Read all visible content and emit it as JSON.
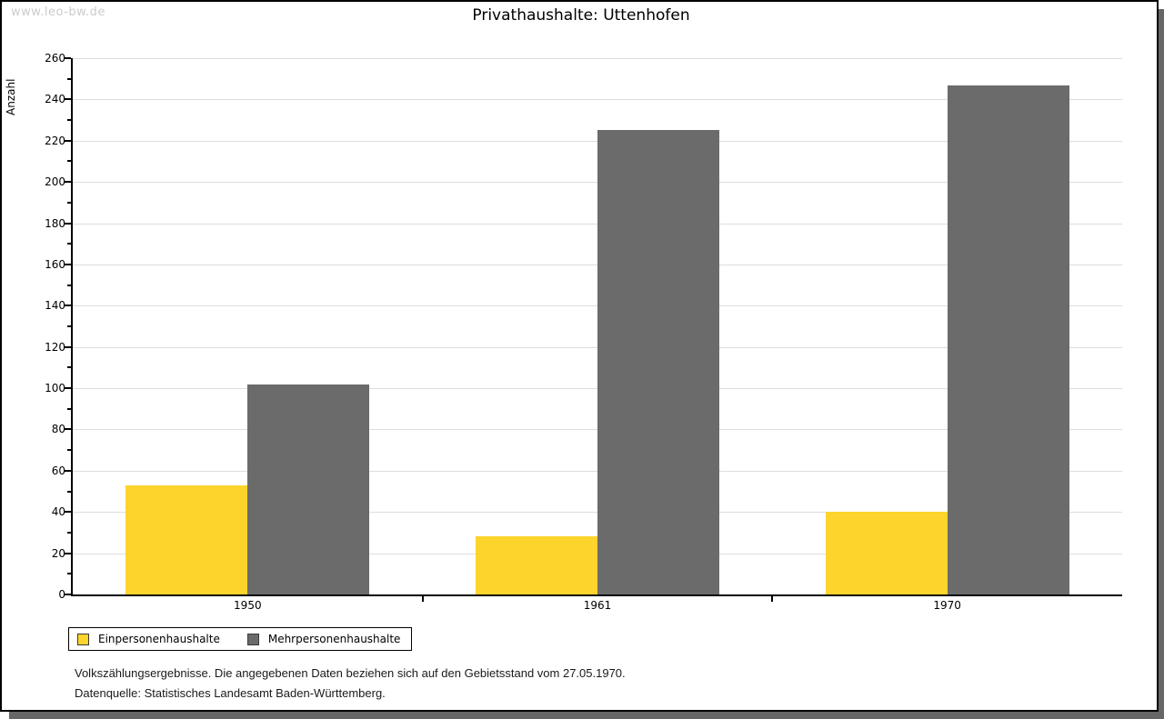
{
  "watermark": "www.leo-bw.de",
  "title": "Privathaushalte: Uttenhofen",
  "chart_data": {
    "type": "bar",
    "title": "Privathaushalte: Uttenhofen",
    "xlabel": "",
    "ylabel": "Anzahl",
    "categories": [
      "1950",
      "1961",
      "1970"
    ],
    "series": [
      {
        "name": "Einpersonenhaushalte",
        "color": "#FCD42C",
        "values": [
          53,
          28,
          40
        ]
      },
      {
        "name": "Mehrpersonenhaushalte",
        "color": "#6B6B6B",
        "values": [
          102,
          225,
          247
        ]
      }
    ],
    "ylim": [
      0,
      260
    ],
    "y_major_step": 20,
    "y_minor_step": 10,
    "grid": "horizontal-major",
    "gridline_color": "#dddddd",
    "legend_position": "bottom-left"
  },
  "footer": {
    "line1": "Volkszählungsergebnisse. Die angegebenen Daten beziehen sich auf den Gebietsstand vom 27.05.1970.",
    "line2": "Datenquelle: Statistisches Landesamt Baden-Württemberg."
  },
  "colors": {
    "einpersonen": "#FCD42C",
    "mehrpersonen": "#6B6B6B",
    "shadow": "#666666",
    "gridline": "#dddddd",
    "watermark": "#cccccc"
  }
}
